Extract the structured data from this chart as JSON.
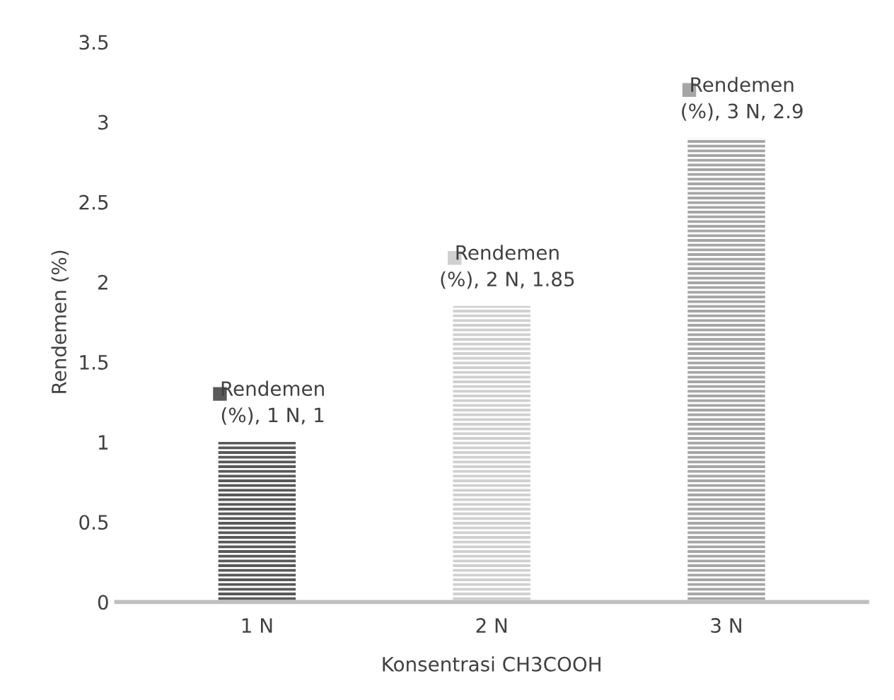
{
  "chart_data": {
    "type": "bar",
    "xlabel": "Konsentrasi CH3COOH",
    "ylabel": "Rendemen (%)",
    "categories": [
      "1 N",
      "2 N",
      "3 N"
    ],
    "values": [
      1,
      1.85,
      2.9
    ],
    "colors": [
      "#595959",
      "#d0d0d0",
      "#a6a6a6"
    ],
    "value_labels": [
      "Rendemen (%), 1 N, 1",
      "Rendemen (%), 2 N, 1.85",
      "Rendemen (%), 3 N, 2.9"
    ],
    "ylim": [
      0,
      3.5
    ],
    "yticks": [
      0,
      0.5,
      1,
      1.5,
      2,
      2.5,
      3,
      3.5
    ],
    "grid": false,
    "legend": false
  }
}
